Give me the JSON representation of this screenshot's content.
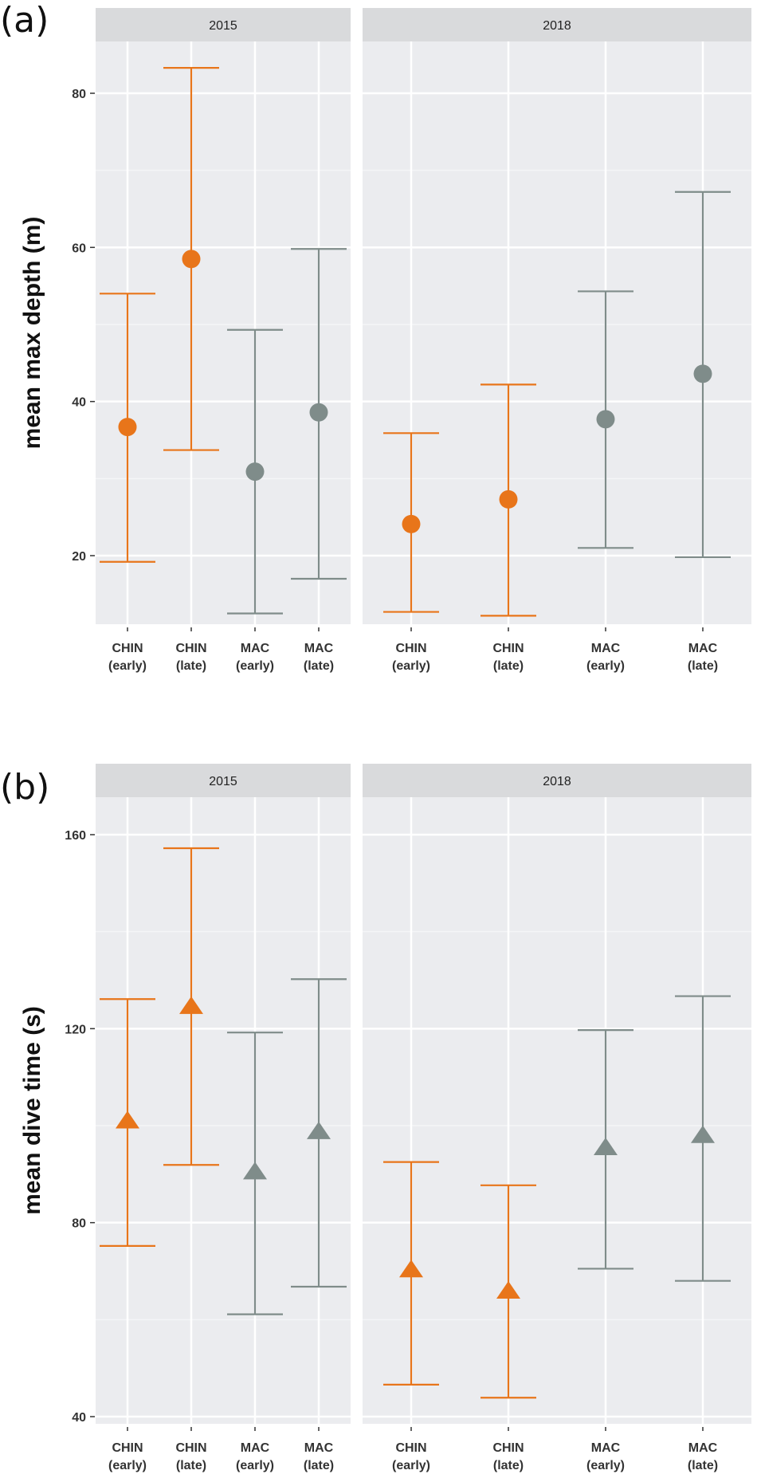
{
  "chart_data": [
    {
      "id": "a",
      "panel_label": "(a)",
      "type": "errorbar",
      "ylabel": "mean max depth (m)",
      "ylim": [
        10,
        87
      ],
      "yticks": [
        20,
        40,
        60,
        80
      ],
      "grid": true,
      "marker": "circle",
      "categories": [
        "CHIN (early)",
        "CHIN (late)",
        "MAC (early)",
        "MAC (late)"
      ],
      "category_lines": [
        [
          "CHIN",
          "(early)"
        ],
        [
          "CHIN",
          "(late)"
        ],
        [
          "MAC",
          "(early)"
        ],
        [
          "MAC",
          "(late)"
        ]
      ],
      "category_colors": [
        "#E8751A",
        "#E8751A",
        "#7F8C8A",
        "#7F8C8A"
      ],
      "facets": [
        {
          "title": "2015",
          "means": [
            36.7,
            58.5,
            30.9,
            38.6
          ],
          "lower": [
            19.2,
            33.7,
            12.5,
            17.0
          ],
          "upper": [
            54.0,
            83.3,
            49.3,
            59.8
          ]
        },
        {
          "title": "2018",
          "means": [
            24.1,
            27.3,
            37.7,
            43.6
          ],
          "lower": [
            12.7,
            12.2,
            21.0,
            19.8
          ],
          "upper": [
            35.9,
            42.2,
            54.3,
            67.2
          ]
        }
      ]
    },
    {
      "id": "b",
      "panel_label": "(b)",
      "type": "errorbar",
      "ylabel": "mean dive time (s)",
      "ylim": [
        39,
        164
      ],
      "yticks": [
        40,
        80,
        120,
        160
      ],
      "grid": true,
      "marker": "triangle",
      "categories": [
        "CHIN (early)",
        "CHIN (late)",
        "MAC (early)",
        "MAC (late)"
      ],
      "category_lines": [
        [
          "CHIN",
          "(early)"
        ],
        [
          "CHIN",
          "(late)"
        ],
        [
          "MAC",
          "(early)"
        ],
        [
          "MAC",
          "(late)"
        ]
      ],
      "category_colors": [
        "#E8751A",
        "#E8751A",
        "#7F8C8A",
        "#7F8C8A"
      ],
      "facets": [
        {
          "title": "2015",
          "means": [
            100.8,
            124.4,
            90.3,
            98.6
          ],
          "lower": [
            75.2,
            91.9,
            61.1,
            66.8
          ],
          "upper": [
            126.1,
            157.2,
            119.2,
            130.2
          ]
        },
        {
          "title": "2018",
          "means": [
            70.1,
            65.7,
            95.3,
            97.8
          ],
          "lower": [
            46.6,
            43.9,
            70.5,
            68.0
          ],
          "upper": [
            92.5,
            87.7,
            119.7,
            126.7
          ]
        }
      ]
    }
  ],
  "colors": {
    "panel_bg": "#EBECEF",
    "strip_bg": "#D9DADC",
    "grid_major": "#FFFFFF",
    "orange": "#E8751A",
    "grey": "#7F8C8A"
  }
}
